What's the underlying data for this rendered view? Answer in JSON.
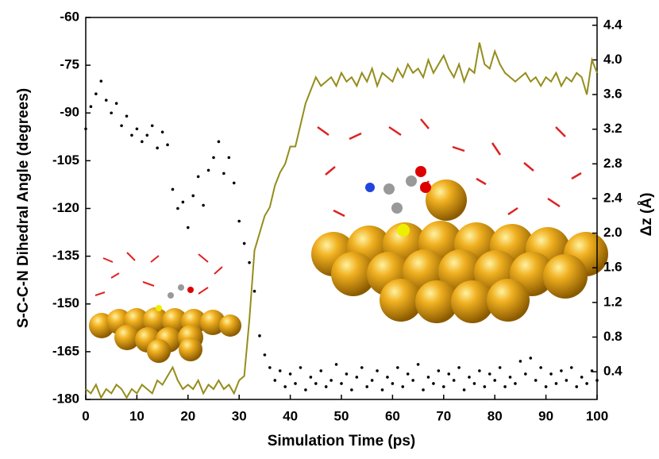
{
  "chart_data": {
    "type": "scatter",
    "xlabel": "Simulation Time (ps)",
    "ylabel": "S-C-C-N Dihedral Angle (degrees)",
    "y2label": "Δz (Å)",
    "x": [
      0,
      1,
      2,
      3,
      4,
      5,
      6,
      7,
      8,
      9,
      10,
      11,
      12,
      13,
      14,
      15,
      16,
      17,
      18,
      19,
      20,
      21,
      22,
      23,
      24,
      25,
      26,
      27,
      28,
      29,
      30,
      31,
      32,
      33,
      34,
      35,
      36,
      37,
      38,
      39,
      40,
      41,
      42,
      43,
      44,
      45,
      46,
      47,
      48,
      49,
      50,
      51,
      52,
      53,
      54,
      55,
      56,
      57,
      58,
      59,
      60,
      61,
      62,
      63,
      64,
      65,
      66,
      67,
      68,
      69,
      70,
      71,
      72,
      73,
      74,
      75,
      76,
      77,
      78,
      79,
      80,
      81,
      82,
      83,
      84,
      85,
      86,
      87,
      88,
      89,
      90,
      91,
      92,
      93,
      94,
      95,
      96,
      97,
      98,
      99,
      100
    ],
    "series": [
      {
        "type": "scatter",
        "color": "#000000",
        "values": [
          -95,
          -88,
          -84,
          -80,
          -86,
          -90,
          -87,
          -94,
          -91,
          -97,
          -95,
          -99,
          -97,
          -94,
          -101,
          -96,
          -100,
          -114,
          -120,
          -118,
          -126,
          -116,
          -110,
          -119,
          -108,
          -104,
          -99,
          -109,
          -104,
          -112,
          -124,
          -131,
          -137,
          -146,
          -160,
          -166,
          -170,
          -174,
          -171,
          -176,
          -172,
          -175,
          -170,
          -177,
          -173,
          -175,
          -171,
          -176,
          -174,
          -169,
          -175,
          -172,
          -177,
          -173,
          -170,
          -176,
          -174,
          -171,
          -177,
          -173,
          -175,
          -170,
          -176,
          -172,
          -174,
          -169,
          -177,
          -173,
          -175,
          -171,
          -176,
          -172,
          -174,
          -170,
          -177,
          -173,
          -175,
          -171,
          -176,
          -172,
          -174,
          -170,
          -176,
          -173,
          -175,
          -168,
          -172,
          -167,
          -174,
          -170,
          -176,
          -172,
          -175,
          -171,
          -174,
          -170,
          -176,
          -173,
          -175,
          -171,
          -174
        ]
      },
      {
        "type": "line",
        "axis": "y2",
        "color": "#958d1c",
        "values": [
          0.2,
          0.15,
          0.25,
          0.1,
          0.2,
          0.15,
          0.25,
          0.2,
          0.1,
          0.2,
          0.15,
          0.25,
          0.2,
          0.15,
          0.3,
          0.25,
          0.35,
          0.45,
          0.3,
          0.2,
          0.25,
          0.2,
          0.3,
          0.15,
          0.25,
          0.2,
          0.3,
          0.2,
          0.25,
          0.15,
          0.3,
          0.35,
          1.0,
          1.8,
          2.0,
          2.2,
          2.3,
          2.55,
          2.7,
          2.8,
          3.0,
          3.0,
          3.25,
          3.5,
          3.65,
          3.8,
          3.7,
          3.75,
          3.8,
          3.7,
          3.85,
          3.75,
          3.8,
          3.7,
          3.85,
          3.75,
          3.9,
          3.7,
          3.85,
          3.8,
          3.75,
          3.9,
          3.8,
          3.95,
          3.85,
          3.9,
          3.8,
          4.0,
          3.85,
          3.95,
          4.05,
          3.9,
          3.8,
          3.95,
          3.75,
          3.9,
          3.85,
          4.2,
          3.95,
          3.9,
          4.1,
          3.95,
          3.85,
          3.8,
          3.75,
          3.8,
          3.85,
          3.75,
          3.8,
          3.7,
          3.8,
          3.75,
          3.85,
          3.7,
          3.8,
          3.75,
          3.85,
          3.8,
          3.6,
          4.0,
          3.85
        ]
      }
    ],
    "xlim": [
      0,
      100
    ],
    "xticks": [
      0,
      10,
      20,
      30,
      40,
      50,
      60,
      70,
      80,
      90,
      100
    ],
    "ylim": [
      -180,
      -60
    ],
    "yticks": [
      -60,
      -75,
      -90,
      -105,
      -120,
      -135,
      -150,
      -165,
      -180
    ],
    "y2lim": [
      0.08,
      4.49
    ],
    "y2ticks": [
      0.4,
      0.8,
      1.2,
      1.6,
      {
        "value": 2.0,
        "label": "2.0"
      },
      2.4,
      2.8,
      3.2,
      3.6,
      {
        "value": 4.0,
        "label": "4.0"
      },
      4.4
    ]
  }
}
